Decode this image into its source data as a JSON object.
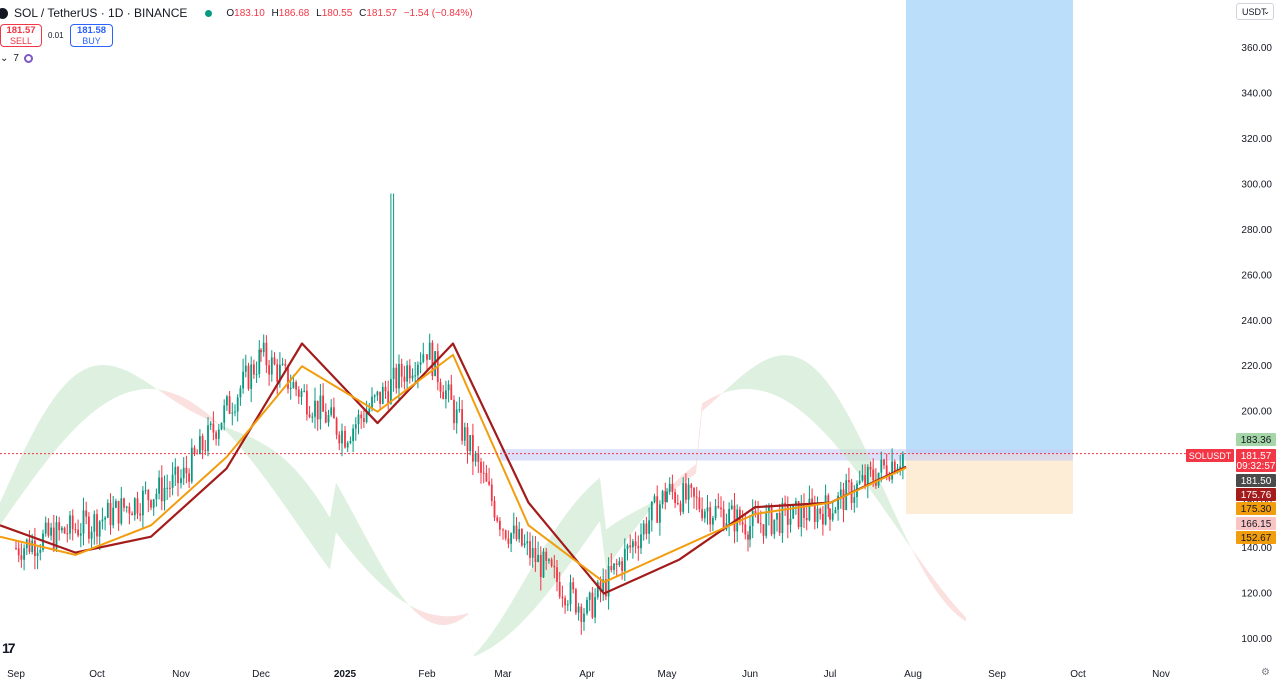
{
  "header": {
    "symbol": "SOL / TetherUS · 1D · BINANCE",
    "open_label": "O",
    "open": "183.10",
    "high_label": "H",
    "high": "186.68",
    "low_label": "L",
    "low": "180.55",
    "close_label": "C",
    "close": "181.57",
    "change": "−1.54 (−0.84%)"
  },
  "trading": {
    "sell_price": "181.57",
    "sell_label": "SELL",
    "spread": "0.01",
    "buy_price": "181.58",
    "buy_label": "BUY"
  },
  "indicators": {
    "count": "7"
  },
  "currency": "USDT",
  "icons": {
    "logo": "sol-logo-icon",
    "status": "market-open-dot-icon",
    "chevron": "chevron-down-icon",
    "indicator": "indicator-icon",
    "tv": "tradingview-logo-icon",
    "settings": "gear-icon"
  },
  "colors": {
    "up": "#089981",
    "down": "#f23645",
    "baseline": "#a31b1b",
    "conversion": "#f29d0e",
    "cloud_bull": "#c8e6c9",
    "cloud_bear": "#f8cccc",
    "target_zone": "#bbdefb",
    "stop_zone": "#fde7c8"
  },
  "price_labels": [
    {
      "text": "SOLUSDT",
      "bg": "#f23645"
    },
    {
      "text": "183.36",
      "bg": "#a5d6a7",
      "fg": "#131722"
    },
    {
      "text": "181.57",
      "bg": "#f23645",
      "fg": "#ffffff"
    },
    {
      "text": "09:32:57",
      "bg": "#f23645",
      "fg": "#ffffff"
    },
    {
      "text": "181.50",
      "bg": "#4a4a4a",
      "fg": "#ffffff"
    },
    {
      "text": "175.76",
      "bg": "#a31b1b",
      "fg": "#ffffff"
    },
    {
      "text": "175.30",
      "bg": "#f29d0e",
      "fg": "#131722"
    },
    {
      "text": "166.15",
      "bg": "#f8c4c4",
      "fg": "#131722"
    },
    {
      "text": "152.67",
      "bg": "#f29d0e",
      "fg": "#131722"
    }
  ],
  "chart_data": {
    "type": "candlestick",
    "y_ticks": [
      "360.00",
      "340.00",
      "320.00",
      "300.00",
      "280.00",
      "260.00",
      "240.00",
      "220.00",
      "200.00",
      "180.00",
      "160.00",
      "140.00",
      "120.00",
      "100.00"
    ],
    "ylim": [
      95,
      370
    ],
    "x_labels": [
      "Sep",
      "Oct",
      "Nov",
      "Dec",
      "2025",
      "Feb",
      "Mar",
      "Apr",
      "May",
      "Jun",
      "Jul",
      "Aug",
      "Sep",
      "Oct",
      "Nov"
    ],
    "x_label_bold_index": 4,
    "grid": false,
    "current_price": 181.57,
    "series": [
      {
        "name": "price",
        "x": [
          "Sep",
          "Oct",
          "Nov",
          "Dec",
          "2025",
          "Feb",
          "Mar",
          "Apr",
          "May",
          "Jun",
          "Jul",
          "Jul end"
        ],
        "close": [
          140,
          152,
          170,
          225,
          190,
          228,
          150,
          112,
          165,
          150,
          158,
          182
        ]
      },
      {
        "name": "baseline",
        "close": [
          150,
          138,
          145,
          175,
          230,
          195,
          230,
          160,
          120,
          135,
          158,
          160,
          175.76
        ]
      },
      {
        "name": "conversion",
        "close": [
          145,
          137,
          150,
          180,
          220,
          200,
          225,
          150,
          125,
          140,
          155,
          160,
          175.3
        ]
      }
    ],
    "zones": [
      {
        "name": "target",
        "from": 181.57,
        "to": 370
      },
      {
        "name": "entry",
        "from": 178.5,
        "to": 183.5
      },
      {
        "name": "stop",
        "from": 155,
        "to": 181.57
      }
    ]
  }
}
